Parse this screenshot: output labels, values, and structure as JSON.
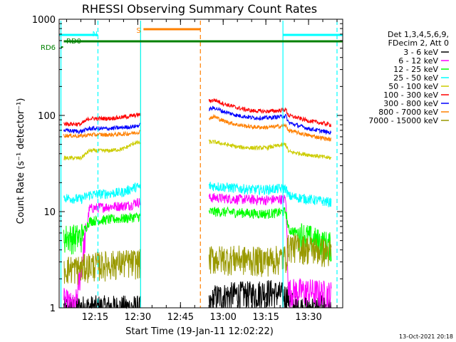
{
  "chart_data": {
    "type": "line",
    "title": "RHESSI Observing Summary Count Rates",
    "xlabel": "Start Time (19-Jan-11 12:02:22)",
    "ylabel": "Count Rate (s⁻¹ detector⁻¹)",
    "y_scale": "log",
    "ylim": [
      1,
      1000
    ],
    "xlim": [
      "12:02:22",
      "13:42:00"
    ],
    "x_tick_labels": [
      "12:15",
      "12:30",
      "12:45",
      "13:00",
      "13:15",
      "13:30"
    ],
    "y_tick_labels": [
      "1",
      "10",
      "100",
      "1000"
    ],
    "legend": {
      "position": "top-right",
      "header": [
        "Det 1,3,4,5,6,9,",
        "FDecim 2, Att 0"
      ]
    },
    "series": [
      {
        "name": "3 - 6 keV",
        "color": "#000000",
        "points": [
          [
            "12:04",
            1.0
          ],
          [
            "12:10",
            1.0
          ],
          [
            "12:20",
            1.0
          ],
          [
            "12:30",
            1.0
          ],
          [
            "12:55",
            1.0
          ],
          [
            "12:57",
            1.3
          ],
          [
            "13:05",
            1.4
          ],
          [
            "13:10",
            1.4
          ],
          [
            "13:15",
            1.5
          ],
          [
            "13:20",
            1.4
          ],
          [
            "13:23",
            1.3
          ],
          [
            "13:25",
            1.0
          ],
          [
            "13:33",
            1.0
          ],
          [
            "13:38",
            1.0
          ]
        ]
      },
      {
        "name": "6 - 12 keV",
        "color": "#ff00ff",
        "points": [
          [
            "12:04",
            1.2
          ],
          [
            "12:08",
            1.0
          ],
          [
            "12:13",
            10.8
          ],
          [
            "12:20",
            11.3
          ],
          [
            "12:25",
            11.5
          ],
          [
            "12:28",
            11.8
          ],
          [
            "12:29",
            12.5
          ],
          [
            "12:57",
            14.0
          ],
          [
            "13:05",
            13.5
          ],
          [
            "13:10",
            13.4
          ],
          [
            "13:15",
            13.2
          ],
          [
            "13:20",
            13.5
          ],
          [
            "13:22",
            13.6
          ],
          [
            "13:23",
            1.5
          ],
          [
            "13:30",
            1.5
          ],
          [
            "13:38",
            1.4
          ]
        ]
      },
      {
        "name": "12 - 25 keV",
        "color": "#00ff00",
        "points": [
          [
            "12:04",
            5.5
          ],
          [
            "12:10",
            5.5
          ],
          [
            "12:13",
            8.0
          ],
          [
            "12:20",
            8.3
          ],
          [
            "12:25",
            8.5
          ],
          [
            "12:29",
            8.8
          ],
          [
            "12:57",
            10.0
          ],
          [
            "13:05",
            9.8
          ],
          [
            "13:10",
            9.6
          ],
          [
            "13:15",
            9.5
          ],
          [
            "13:20",
            9.8
          ],
          [
            "13:22",
            10.0
          ],
          [
            "13:23",
            6.5
          ],
          [
            "13:28",
            5.8
          ],
          [
            "13:33",
            5.0
          ],
          [
            "13:38",
            4.5
          ]
        ]
      },
      {
        "name": "25 - 50 keV",
        "color": "#00ffff",
        "points": [
          [
            "12:04",
            14.0
          ],
          [
            "12:10",
            13.5
          ],
          [
            "12:13",
            15.0
          ],
          [
            "12:20",
            15.5
          ],
          [
            "12:25",
            16.0
          ],
          [
            "12:29",
            18.0
          ],
          [
            "12:57",
            18.5
          ],
          [
            "13:05",
            17.5
          ],
          [
            "13:10",
            17.0
          ],
          [
            "13:15",
            17.0
          ],
          [
            "13:22",
            17.5
          ],
          [
            "13:23",
            14.5
          ],
          [
            "13:30",
            13.5
          ],
          [
            "13:38",
            12.5
          ]
        ]
      },
      {
        "name": "50 - 100 keV",
        "color": "#cccc00",
        "points": [
          [
            "12:04",
            36.0
          ],
          [
            "12:10",
            36.0
          ],
          [
            "12:13",
            43.0
          ],
          [
            "12:20",
            43.0
          ],
          [
            "12:25",
            45.0
          ],
          [
            "12:29",
            52.0
          ],
          [
            "12:57",
            53.0
          ],
          [
            "13:05",
            47.0
          ],
          [
            "13:10",
            46.0
          ],
          [
            "13:15",
            46.0
          ],
          [
            "13:22",
            50.0
          ],
          [
            "13:23",
            42.0
          ],
          [
            "13:30",
            39.0
          ],
          [
            "13:38",
            36.0
          ]
        ]
      },
      {
        "name": "100 - 300 keV",
        "color": "#ff0000",
        "points": [
          [
            "12:04",
            82.0
          ],
          [
            "12:10",
            81.0
          ],
          [
            "12:13",
            93.0
          ],
          [
            "12:20",
            93.0
          ],
          [
            "12:25",
            96.0
          ],
          [
            "12:29",
            100.0
          ],
          [
            "12:57",
            145.0
          ],
          [
            "13:00",
            133.0
          ],
          [
            "13:05",
            120.0
          ],
          [
            "13:10",
            112.0
          ],
          [
            "13:15",
            110.0
          ],
          [
            "13:19",
            112.0
          ],
          [
            "13:22",
            115.0
          ],
          [
            "13:23",
            100.0
          ],
          [
            "13:30",
            88.0
          ],
          [
            "13:38",
            80.0
          ]
        ]
      },
      {
        "name": "300 - 800 keV",
        "color": "#0000ff",
        "points": [
          [
            "12:04",
            70.0
          ],
          [
            "12:10",
            68.0
          ],
          [
            "12:13",
            73.0
          ],
          [
            "12:20",
            73.0
          ],
          [
            "12:25",
            75.0
          ],
          [
            "12:29",
            77.0
          ],
          [
            "12:57",
            120.0
          ],
          [
            "13:00",
            110.0
          ],
          [
            "13:05",
            100.0
          ],
          [
            "13:10",
            95.0
          ],
          [
            "13:15",
            94.0
          ],
          [
            "13:20",
            97.0
          ],
          [
            "13:22",
            99.0
          ],
          [
            "13:23",
            84.0
          ],
          [
            "13:30",
            73.0
          ],
          [
            "13:38",
            66.0
          ]
        ]
      },
      {
        "name": "800 - 7000 keV",
        "color": "#ff8000",
        "points": [
          [
            "12:04",
            62.0
          ],
          [
            "12:10",
            61.0
          ],
          [
            "12:13",
            63.0
          ],
          [
            "12:20",
            63.0
          ],
          [
            "12:25",
            64.0
          ],
          [
            "12:29",
            66.0
          ],
          [
            "12:57",
            97.0
          ],
          [
            "13:00",
            88.0
          ],
          [
            "13:05",
            80.0
          ],
          [
            "13:10",
            76.0
          ],
          [
            "13:15",
            75.0
          ],
          [
            "13:22",
            78.0
          ],
          [
            "13:23",
            70.0
          ],
          [
            "13:30",
            62.0
          ],
          [
            "13:38",
            56.0
          ]
        ]
      },
      {
        "name": "7000 - 15000 keV",
        "color": "#999900",
        "points": [
          [
            "12:04",
            2.6
          ],
          [
            "12:10",
            2.6
          ],
          [
            "12:13",
            2.8
          ],
          [
            "12:20",
            2.9
          ],
          [
            "12:25",
            3.0
          ],
          [
            "12:29",
            3.0
          ],
          [
            "12:57",
            3.3
          ],
          [
            "13:05",
            3.3
          ],
          [
            "13:10",
            3.2
          ],
          [
            "13:15",
            3.2
          ],
          [
            "13:20",
            3.3
          ],
          [
            "13:22",
            3.4
          ],
          [
            "13:23",
            4.5
          ],
          [
            "13:30",
            4.2
          ],
          [
            "13:38",
            3.8
          ]
        ]
      }
    ],
    "flags": [
      {
        "label": "N",
        "color": "#00ffff",
        "segments": [
          [
            "12:02:22",
            "12:16"
          ],
          [
            "13:21",
            "13:42"
          ]
        ]
      },
      {
        "label": "S",
        "color": "#ff8000",
        "segments": [
          [
            "12:32",
            "12:52"
          ]
        ]
      },
      {
        "label": "RD0",
        "color": "#008000",
        "segments": [
          [
            "12:04",
            "13:42"
          ]
        ]
      },
      {
        "label": "RD6",
        "color": "#008000",
        "segments": [
          [
            "12:03",
            "12:04"
          ]
        ]
      }
    ],
    "vlines": [
      {
        "t": "12:03",
        "color": "#00ffff",
        "style": "solid"
      },
      {
        "t": "12:16",
        "color": "#00ffff",
        "style": "dashed"
      },
      {
        "t": "12:31",
        "color": "#ff8000",
        "style": "solid"
      },
      {
        "t": "12:31",
        "color": "#00ffff",
        "style": "solid"
      },
      {
        "t": "12:52",
        "color": "#ff8000",
        "style": "dashed"
      },
      {
        "t": "13:21",
        "color": "#00ffff",
        "style": "solid"
      },
      {
        "t": "13:40",
        "color": "#00ffff",
        "style": "dashed"
      }
    ],
    "data_gaps": [
      [
        "12:31",
        "12:55"
      ]
    ],
    "timestamp": "13-Oct-2021 20:18"
  }
}
